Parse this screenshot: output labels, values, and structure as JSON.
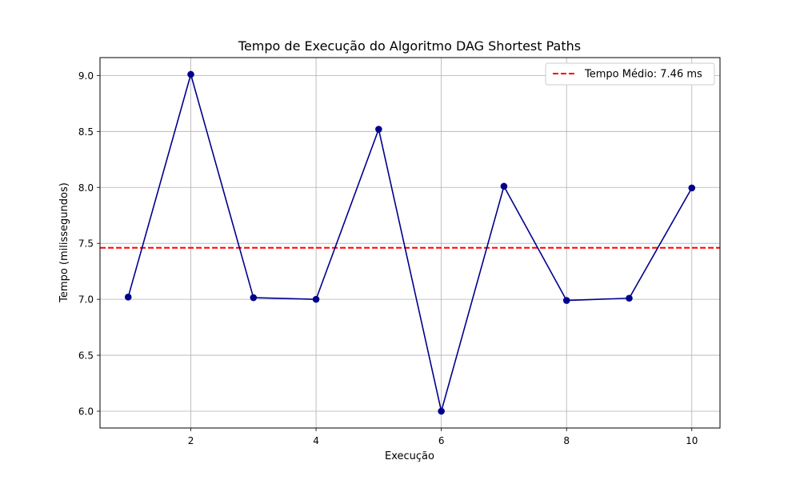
{
  "chart_data": {
    "type": "line",
    "title": "Tempo de Execução do Algoritmo DAG Shortest Paths",
    "xlabel": "Execução",
    "ylabel": "Tempo (milissegundos)",
    "x": [
      1,
      2,
      3,
      4,
      5,
      6,
      7,
      8,
      9,
      10
    ],
    "series": [
      {
        "values": [
          7.02,
          9.01,
          7.015,
          7.0,
          8.52,
          6.0,
          8.01,
          6.99,
          7.01,
          7.995
        ],
        "color": "#00008b",
        "marker": "circle"
      }
    ],
    "mean_line": {
      "value": 7.46,
      "label": "Tempo Médio: 7.46 ms",
      "color": "#ff0000",
      "style": "dashed"
    },
    "xlim": [
      0.55,
      10.45
    ],
    "ylim": [
      5.85,
      9.16
    ],
    "xticks": [
      2,
      4,
      6,
      8,
      10
    ],
    "yticks": [
      6.0,
      6.5,
      7.0,
      7.5,
      8.0,
      8.5,
      9.0
    ],
    "ytick_labels": [
      "6.0",
      "6.5",
      "7.0",
      "7.5",
      "8.0",
      "8.5",
      "9.0"
    ],
    "grid": true,
    "legend_position": "top-right"
  }
}
